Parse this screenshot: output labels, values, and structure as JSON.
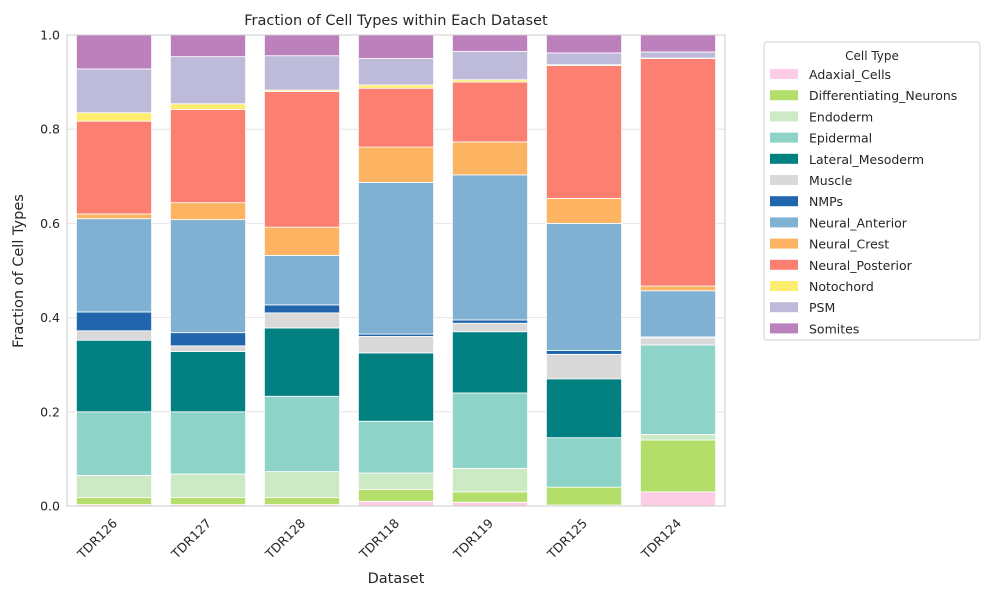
{
  "chart_data": {
    "type": "bar",
    "stacked": true,
    "title": "Fraction of Cell Types within Each Dataset",
    "xlabel": "Dataset",
    "ylabel": "Fraction of Cell Types",
    "ylim": [
      0,
      1.0
    ],
    "yticks": [
      "0.0",
      "0.2",
      "0.4",
      "0.6",
      "0.8",
      "1.0"
    ],
    "grid": true,
    "legend_title": "Cell Type",
    "legend_placement": "outside-right",
    "categories": [
      "TDR126",
      "TDR127",
      "TDR128",
      "TDR118",
      "TDR119",
      "TDR125",
      "TDR124"
    ],
    "series": [
      {
        "name": "Adaxial_Cells",
        "color": "#fccde5",
        "values": [
          0.003,
          0.003,
          0.003,
          0.01,
          0.008,
          0.002,
          0.03
        ]
      },
      {
        "name": "Differentiating_Neurons",
        "color": "#b3de69",
        "values": [
          0.015,
          0.015,
          0.015,
          0.025,
          0.022,
          0.038,
          0.11
        ]
      },
      {
        "name": "Endoderm",
        "color": "#ccebc5",
        "values": [
          0.047,
          0.05,
          0.055,
          0.035,
          0.05,
          0.0,
          0.012
        ]
      },
      {
        "name": "Epidermal",
        "color": "#8dd3c7",
        "values": [
          0.135,
          0.132,
          0.16,
          0.11,
          0.16,
          0.105,
          0.19
        ]
      },
      {
        "name": "Lateral_Mesoderm",
        "color": "#008080",
        "values": [
          0.152,
          0.128,
          0.145,
          0.145,
          0.13,
          0.125,
          0.0
        ]
      },
      {
        "name": "Muscle",
        "color": "#d9d9d9",
        "values": [
          0.02,
          0.012,
          0.032,
          0.035,
          0.018,
          0.052,
          0.015
        ]
      },
      {
        "name": "NMPs",
        "color": "#2166ac",
        "values": [
          0.04,
          0.028,
          0.017,
          0.005,
          0.007,
          0.008,
          0.002
        ]
      },
      {
        "name": "Neural_Anterior",
        "color": "#80b1d3",
        "values": [
          0.198,
          0.24,
          0.105,
          0.322,
          0.308,
          0.27,
          0.098
        ]
      },
      {
        "name": "Neural_Crest",
        "color": "#fdb462",
        "values": [
          0.01,
          0.036,
          0.06,
          0.075,
          0.07,
          0.053,
          0.01
        ]
      },
      {
        "name": "Neural_Posterior",
        "color": "#fb8072",
        "values": [
          0.197,
          0.198,
          0.288,
          0.125,
          0.127,
          0.282,
          0.483
        ]
      },
      {
        "name": "Notochord",
        "color": "#ffed6f",
        "values": [
          0.018,
          0.012,
          0.003,
          0.007,
          0.005,
          0.002,
          0.001
        ]
      },
      {
        "name": "PSM",
        "color": "#bebada",
        "values": [
          0.093,
          0.1,
          0.073,
          0.056,
          0.06,
          0.025,
          0.013
        ]
      },
      {
        "name": "Somites",
        "color": "#bc80bd",
        "values": [
          0.072,
          0.046,
          0.044,
          0.05,
          0.035,
          0.038,
          0.036
        ]
      }
    ]
  }
}
